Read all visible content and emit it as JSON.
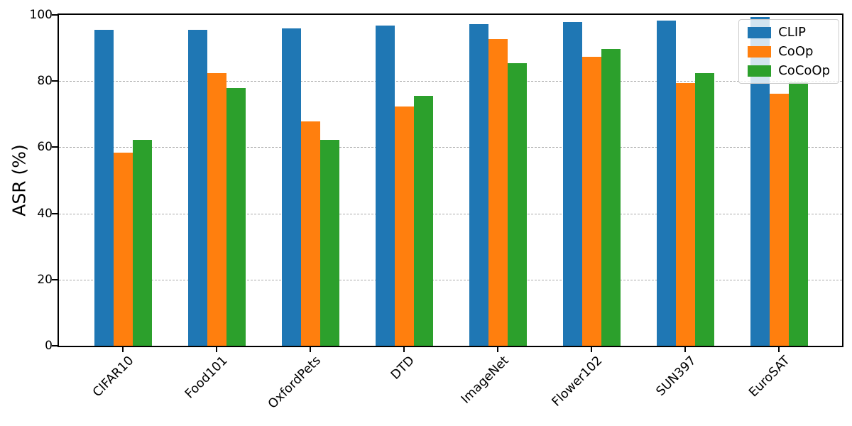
{
  "chart_data": {
    "type": "bar",
    "title": "",
    "xlabel": "",
    "ylabel": "ASR (%)",
    "categories": [
      "CIFAR10",
      "Food101",
      "OxfordPets",
      "DTD",
      "ImageNet",
      "Flower102",
      "SUN397",
      "EuroSAT"
    ],
    "series": [
      {
        "name": "CLIP",
        "color": "#1f77b4",
        "values": [
          95.6,
          95.6,
          96.0,
          96.7,
          97.2,
          97.8,
          98.2,
          99.3
        ]
      },
      {
        "name": "CoOp",
        "color": "#ff7f0e",
        "values": [
          58.3,
          82.4,
          67.9,
          72.3,
          92.6,
          87.3,
          79.3,
          76.2
        ]
      },
      {
        "name": "CoCoOp",
        "color": "#2ca02c",
        "values": [
          62.2,
          77.8,
          62.2,
          75.6,
          85.4,
          89.6,
          82.5,
          79.7
        ]
      }
    ],
    "ylim": [
      0,
      100
    ],
    "yticks": [
      0,
      20,
      40,
      60,
      80,
      100
    ],
    "grid": "horizontal-dashed",
    "grid_color": "#ababab",
    "axis_color": "#000000",
    "background_color": "#ffffff",
    "legend_position": "upper-right",
    "xtick_rotation_deg": 45
  }
}
